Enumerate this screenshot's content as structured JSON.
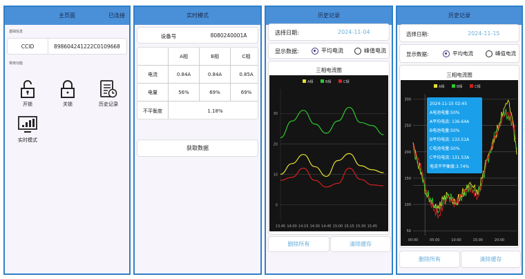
{
  "colors": {
    "header": "#4a90d9",
    "border": "#2f7fc8",
    "phase_a": "#e8e030",
    "phase_b": "#2ec82e",
    "phase_c": "#d42020",
    "date": "#6aaedc"
  },
  "home": {
    "title": "主页面",
    "status": "已连接",
    "basic_label": "基础信息",
    "ccid_label": "CCID",
    "ccid_value": "898604241222C0109668",
    "common_label": "常用功能",
    "features": [
      {
        "label": "开锁",
        "icon": "unlock-icon"
      },
      {
        "label": "关锁",
        "icon": "lock-icon"
      },
      {
        "label": "历史记录",
        "icon": "history-icon"
      },
      {
        "label": "实时模式",
        "icon": "monitor-chart-icon"
      }
    ]
  },
  "realtime": {
    "title": "实时模式",
    "device_label": "设备号",
    "device_value": "8080240001A",
    "table": {
      "headers": [
        "",
        "A相",
        "B相",
        "C相"
      ],
      "rows": [
        [
          "电流",
          "0.84A",
          "0.84A",
          "0.85A"
        ],
        [
          "电量",
          "56%",
          "69%",
          "69%"
        ]
      ],
      "imbalance_label": "不平衡度",
      "imbalance_value": "1.18%"
    },
    "fetch_button": "获取数据"
  },
  "history_1": {
    "title": "历史记录",
    "date_label": "选择日期:",
    "date_value": "2024-11-04",
    "show_label": "显示数据:",
    "option_avg": "平均电流",
    "option_peak": "峰值电流",
    "selected": "avg",
    "chart_title": "三相电流图",
    "delete_all": "删除所有",
    "clear_cache": "清除缓存"
  },
  "history_2": {
    "title": "历史记录",
    "date_label": "选择日期:",
    "date_value": "2024-11-15",
    "show_label": "显示数据:",
    "option_avg": "平均电流",
    "option_peak": "峰值电流",
    "selected": "avg",
    "chart_title": "三相电流图",
    "delete_all": "删除所有",
    "clear_cache": "清除缓存",
    "tooltip": [
      "2024-11-15 02:45",
      "A电池电量:50%",
      "A平均电流: 136.64A",
      "B电池电量:50%",
      "B平均电流: 133.51A",
      "C电池电量:50%",
      "C平均电流: 131.53A",
      "电流不平衡度:3.74%"
    ]
  },
  "chart_data": [
    {
      "type": "line",
      "legend": [
        "A相",
        "B相",
        "C相"
      ],
      "legend_position": "top",
      "grid": true,
      "x": [
        "13:45",
        "14:00",
        "14:15",
        "14:30",
        "14:45",
        "15:00",
        "15:15",
        "15:30",
        "15:45",
        "16:00"
      ],
      "xticks": [
        "13:45",
        "14:00",
        "14:15",
        "14:30",
        "14:45",
        "15:00",
        "15:15",
        "15:30",
        "15:45"
      ],
      "yticks": [
        0,
        10,
        20,
        30
      ],
      "ylim": [
        -4,
        38
      ],
      "series": [
        {
          "name": "A相",
          "values": [
            10,
            13.5,
            16.5,
            12.5,
            9.3,
            14.5,
            16.8,
            12.8,
            11.5,
            10.5
          ]
        },
        {
          "name": "B相",
          "values": [
            22,
            27.5,
            31,
            26.5,
            23.5,
            27.5,
            32,
            27,
            26,
            23
          ]
        },
        {
          "name": "C相",
          "values": [
            8,
            9,
            12,
            8,
            5.8,
            7,
            12,
            8.3,
            6.5,
            6.2
          ]
        }
      ]
    },
    {
      "type": "line",
      "legend": [
        "A相",
        "B相",
        "C相"
      ],
      "legend_position": "top",
      "grid": true,
      "x_hours": [
        0,
        1,
        2,
        3,
        4,
        5,
        6,
        7,
        8,
        9,
        10,
        11,
        12,
        13,
        14,
        15,
        16,
        17,
        18,
        19,
        20,
        21,
        22,
        23,
        24
      ],
      "xticks": [
        "00:00",
        "05:00",
        "10:00",
        "15:00",
        "20:00"
      ],
      "yticks": [
        50,
        100,
        150,
        200,
        250,
        300
      ],
      "ylim": [
        45,
        310
      ],
      "crosshair": {
        "x": "02:45",
        "y": 136
      },
      "series": [
        {
          "name": "A相",
          "values": [
            218,
            182,
            160,
            120,
            108,
            94,
            92,
            110,
            118,
            108,
            104,
            118,
            128,
            140,
            132,
            118,
            150,
            185,
            205,
            230,
            255,
            282,
            298,
            262,
            195
          ]
        },
        {
          "name": "B相",
          "values": [
            205,
            178,
            155,
            125,
            112,
            98,
            86,
            104,
            112,
            112,
            100,
            112,
            122,
            135,
            128,
            124,
            140,
            178,
            198,
            238,
            250,
            278,
            268,
            255,
            205
          ]
        },
        {
          "name": "C相",
          "values": [
            212,
            185,
            165,
            128,
            104,
            90,
            80,
            100,
            114,
            104,
            102,
            115,
            125,
            132,
            126,
            115,
            142,
            180,
            204,
            226,
            246,
            270,
            275,
            258,
            225
          ]
        }
      ]
    }
  ]
}
